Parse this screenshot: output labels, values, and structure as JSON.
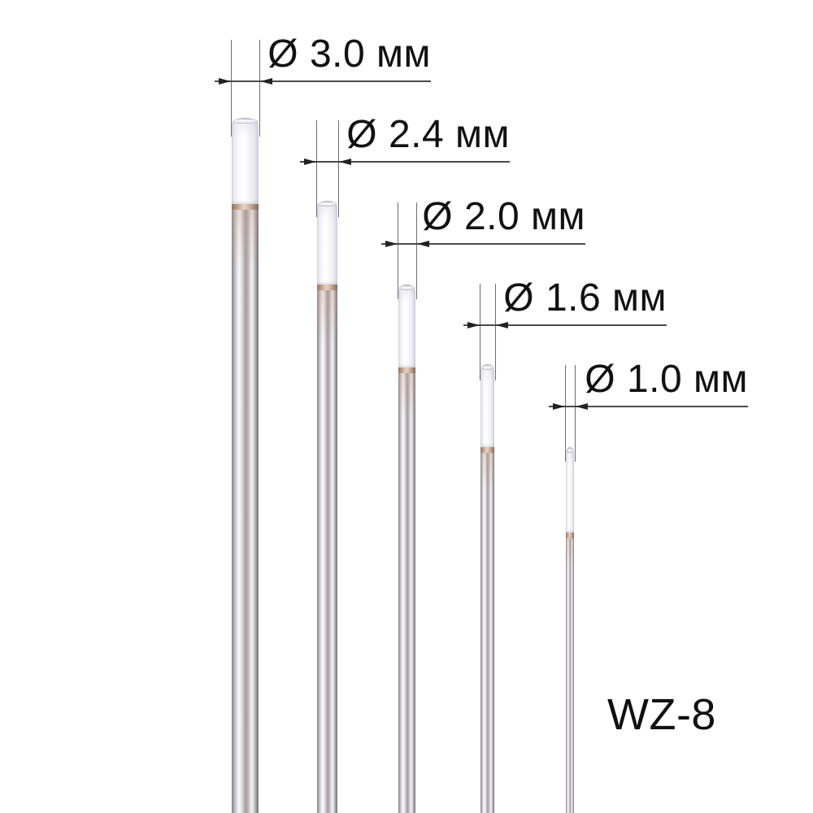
{
  "model_label": "WZ-8",
  "electrodes": [
    {
      "label": "Ø 3.0 мм",
      "diameter_mm": 3.0,
      "unit": "мм"
    },
    {
      "label": "Ø 2.4 мм",
      "diameter_mm": 2.4,
      "unit": "мм"
    },
    {
      "label": "Ø 2.0 мм",
      "diameter_mm": 2.0,
      "unit": "мм"
    },
    {
      "label": "Ø 1.6 мм",
      "diameter_mm": 1.6,
      "unit": "мм"
    },
    {
      "label": "Ø 1.0 мм",
      "diameter_mm": 1.0,
      "unit": "мм"
    }
  ],
  "colors": {
    "background": "#ffffff",
    "text": "#111111",
    "dimension_line": "#4a4a4a",
    "extension_line": "#6e6e72",
    "tip_white": "#f7f7fa",
    "transition_copper": "#b9988a",
    "metal_silver": "#b3b0b5"
  }
}
